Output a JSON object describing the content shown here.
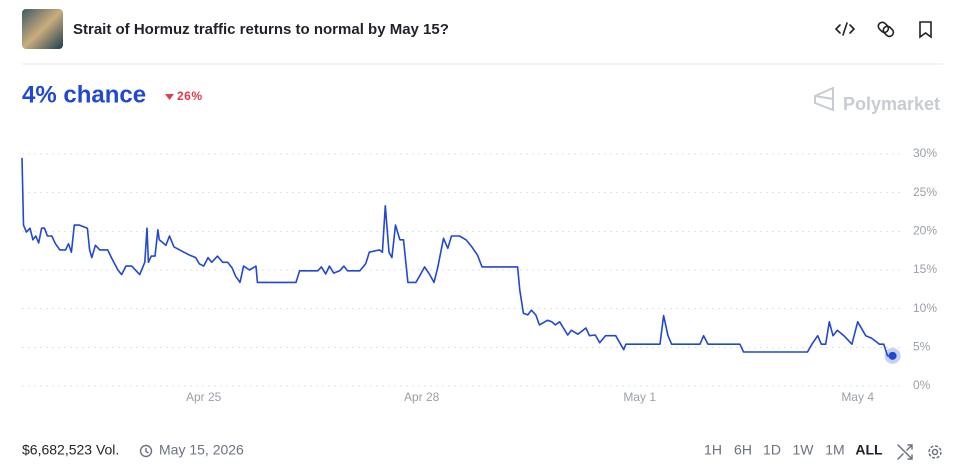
{
  "header": {
    "title": "Strait of Hormuz traffic returns to normal by May 15?"
  },
  "headline": {
    "chance": "4% chance",
    "change": "26%"
  },
  "brand": "Polymarket",
  "chart_data": {
    "type": "line",
    "color": "#2148d1",
    "grid": true,
    "x": [
      22.5,
      22.52,
      22.56,
      22.61,
      22.65,
      22.69,
      22.73,
      22.77,
      22.81,
      22.85,
      22.91,
      22.96,
      23.02,
      23.1,
      23.14,
      23.18,
      23.22,
      23.29,
      23.4,
      23.43,
      23.46,
      23.51,
      23.57,
      23.68,
      23.73,
      23.82,
      23.87,
      23.93,
      24.01,
      24.12,
      24.19,
      24.22,
      24.24,
      24.28,
      24.33,
      24.37,
      24.39,
      24.48,
      24.53,
      24.59,
      24.67,
      24.81,
      24.89,
      24.94,
      25.0,
      25.06,
      25.11,
      25.19,
      25.26,
      25.33,
      25.39,
      25.44,
      25.5,
      25.55,
      25.63,
      25.72,
      25.74,
      26.27,
      26.32,
      26.57,
      26.62,
      26.68,
      26.73,
      26.79,
      26.87,
      26.93,
      26.98,
      27.15,
      27.23,
      27.28,
      27.42,
      27.46,
      27.5,
      27.55,
      27.59,
      27.64,
      27.7,
      27.75,
      27.81,
      27.92,
      27.97,
      28.04,
      28.11,
      28.17,
      28.22,
      28.3,
      28.36,
      28.41,
      28.52,
      28.61,
      28.69,
      28.77,
      28.83,
      29.32,
      29.35,
      29.4,
      29.46,
      29.51,
      29.57,
      29.62,
      29.73,
      29.79,
      29.84,
      29.9,
      29.95,
      30.01,
      30.06,
      30.15,
      30.26,
      30.31,
      30.39,
      30.45,
      30.53,
      30.67,
      30.78,
      30.81,
      31.28,
      31.33,
      31.39,
      31.44,
      31.83,
      31.88,
      31.94,
      32.38,
      32.43,
      33.31,
      33.37,
      33.45,
      33.5,
      33.56,
      33.61,
      33.66,
      33.72,
      33.81,
      33.92,
      34.0,
      34.11,
      34.19,
      34.3,
      34.36,
      34.41,
      34.48
    ],
    "values": [
      29.5,
      20.8,
      19.9,
      20.4,
      18.9,
      19.4,
      18.5,
      20.4,
      20.4,
      19.4,
      19.4,
      18.4,
      17.6,
      17.6,
      18.4,
      17.3,
      20.8,
      20.8,
      20.4,
      17.6,
      16.6,
      18.2,
      17.6,
      17.6,
      16.6,
      15.0,
      14.4,
      15.5,
      15.5,
      14.4,
      16.0,
      20.4,
      16.0,
      16.8,
      16.8,
      20.2,
      18.9,
      18.2,
      19.4,
      18.0,
      17.6,
      16.9,
      16.6,
      15.8,
      15.5,
      16.6,
      16.0,
      16.8,
      16.0,
      16.0,
      15.3,
      14.2,
      13.4,
      15.5,
      15.0,
      15.5,
      13.4,
      13.4,
      14.9,
      14.9,
      15.4,
      14.5,
      15.5,
      14.6,
      14.9,
      15.5,
      14.9,
      14.9,
      15.8,
      17.3,
      17.6,
      17.3,
      23.3,
      17.3,
      16.6,
      20.8,
      18.9,
      18.9,
      13.4,
      13.4,
      14.2,
      15.4,
      14.4,
      13.4,
      15.3,
      19.1,
      17.8,
      19.4,
      19.4,
      18.9,
      18.0,
      16.9,
      15.4,
      15.4,
      12.4,
      9.4,
      9.2,
      9.8,
      9.2,
      7.9,
      8.5,
      8.3,
      7.9,
      8.3,
      7.5,
      6.6,
      7.2,
      6.7,
      7.5,
      6.5,
      6.6,
      5.6,
      6.5,
      6.5,
      4.7,
      5.4,
      5.4,
      9.1,
      6.5,
      5.4,
      5.4,
      6.5,
      5.4,
      5.4,
      4.4,
      4.4,
      5.4,
      6.5,
      5.4,
      5.4,
      8.3,
      6.5,
      7.2,
      6.5,
      5.4,
      8.3,
      6.5,
      6.2,
      5.4,
      5.4,
      3.9,
      3.9
    ],
    "xlim": [
      22.5,
      34.5
    ],
    "xticks": [
      {
        "value": 25,
        "label": "Apr 25"
      },
      {
        "value": 28,
        "label": "Apr 28"
      },
      {
        "value": 31,
        "label": "May 1"
      },
      {
        "value": 34,
        "label": "May 4"
      }
    ],
    "ylim": [
      0,
      30
    ],
    "yticks": [
      {
        "value": 0,
        "label": "0%"
      },
      {
        "value": 5,
        "label": "5%"
      },
      {
        "value": 10,
        "label": "10%"
      },
      {
        "value": 15,
        "label": "15%"
      },
      {
        "value": 20,
        "label": "20%"
      },
      {
        "value": 25,
        "label": "25%"
      },
      {
        "value": 30,
        "label": "30%"
      }
    ]
  },
  "footer": {
    "volume": "$6,682,523 Vol.",
    "end_date": "May 15, 2026",
    "timeframes": [
      "1H",
      "6H",
      "1D",
      "1W",
      "1M",
      "ALL"
    ]
  }
}
